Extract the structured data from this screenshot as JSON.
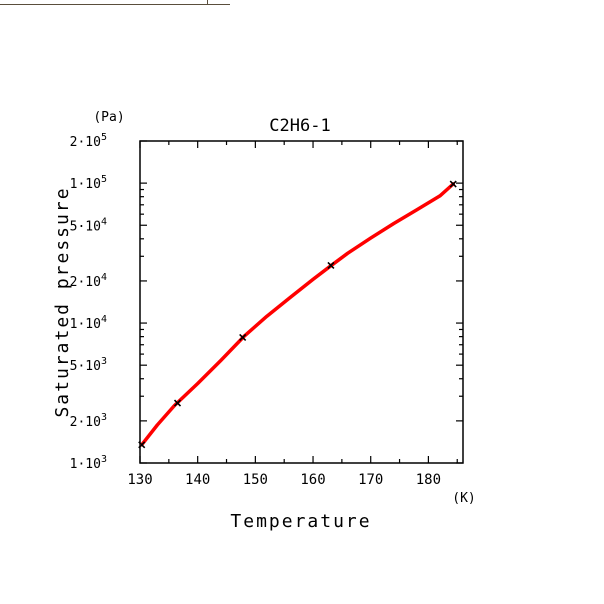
{
  "chart_data": {
    "type": "line",
    "title": "C2H6-1",
    "xlabel": "Temperature",
    "ylabel": "Saturated pressure",
    "xunit": "(K)",
    "yunit": "(Pa)",
    "xlim": [
      130,
      186
    ],
    "ylim": [
      1000,
      200000
    ],
    "yscale": "log",
    "grid": false,
    "legend": "none",
    "xticks": [
      {
        "value": 130,
        "label": "130"
      },
      {
        "value": 140,
        "label": "140"
      },
      {
        "value": 150,
        "label": "150"
      },
      {
        "value": 160,
        "label": "160"
      },
      {
        "value": 170,
        "label": "170"
      },
      {
        "value": 180,
        "label": "180"
      }
    ],
    "yticks": [
      {
        "value": 1000,
        "mant": "1",
        "exp": "3"
      },
      {
        "value": 2000,
        "mant": "2",
        "exp": "3"
      },
      {
        "value": 5000,
        "mant": "5",
        "exp": "3"
      },
      {
        "value": 10000,
        "mant": "1",
        "exp": "4"
      },
      {
        "value": 20000,
        "mant": "2",
        "exp": "4"
      },
      {
        "value": 50000,
        "mant": "5",
        "exp": "4"
      },
      {
        "value": 100000,
        "mant": "1",
        "exp": "5"
      },
      {
        "value": 200000,
        "mant": "2",
        "exp": "5"
      }
    ],
    "series": [
      {
        "kind": "curve",
        "color": "#ff0000",
        "x": [
          130.3,
          133,
          136,
          140,
          144,
          148,
          152,
          156,
          160,
          163,
          166,
          170,
          174,
          178,
          182,
          184.3
        ],
        "y": [
          1350,
          1870,
          2580,
          3700,
          5400,
          8000,
          11200,
          15200,
          20500,
          25500,
          31500,
          40500,
          51500,
          64500,
          81000,
          98500
        ]
      },
      {
        "kind": "markers",
        "marker": "x",
        "color": "#000000",
        "x": [
          130.3,
          136.5,
          147.8,
          163.1,
          184.3
        ],
        "y": [
          1350,
          2680,
          7900,
          25800,
          98500
        ]
      }
    ]
  }
}
